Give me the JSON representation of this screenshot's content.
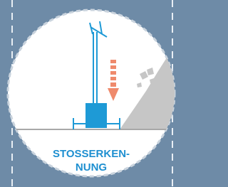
{
  "label": {
    "lines": [
      "STOSSERKEN-",
      "NUNG"
    ]
  }
}
